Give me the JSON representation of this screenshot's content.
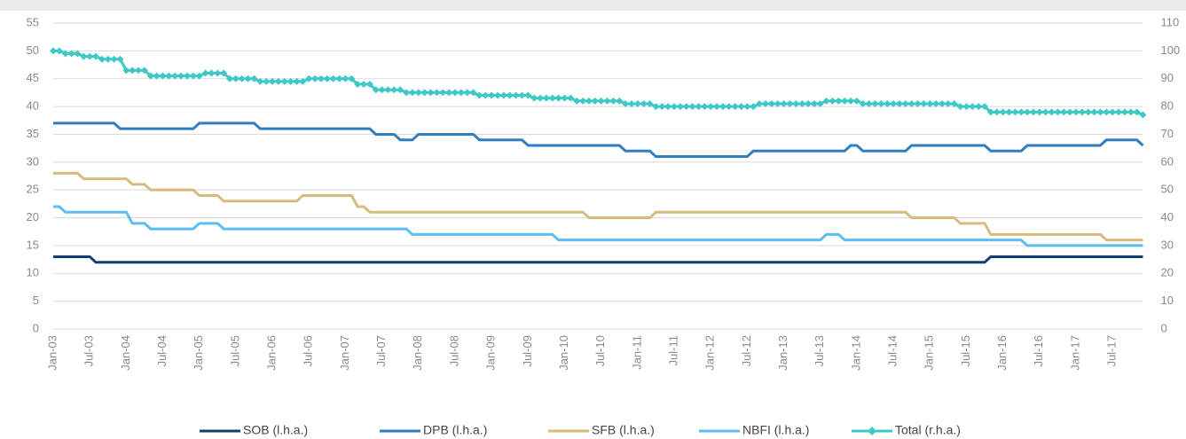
{
  "chart_data": {
    "type": "line",
    "categories": [
      "Jan-03",
      null,
      null,
      null,
      null,
      null,
      "Jul-03",
      null,
      null,
      null,
      null,
      null,
      "Jan-04",
      null,
      null,
      null,
      null,
      null,
      "Jul-04",
      null,
      null,
      null,
      null,
      null,
      "Jan-05",
      null,
      null,
      null,
      null,
      null,
      "Jul-05",
      null,
      null,
      null,
      null,
      null,
      "Jan-06",
      null,
      null,
      null,
      null,
      null,
      "Jul-06",
      null,
      null,
      null,
      null,
      null,
      "Jan-07",
      null,
      null,
      null,
      null,
      null,
      "Jul-07",
      null,
      null,
      null,
      null,
      null,
      "Jan-08",
      null,
      null,
      null,
      null,
      null,
      "Jul-08",
      null,
      null,
      null,
      null,
      null,
      "Jan-09",
      null,
      null,
      null,
      null,
      null,
      "Jul-09",
      null,
      null,
      null,
      null,
      null,
      "Jan-10",
      null,
      null,
      null,
      null,
      null,
      "Jul-10",
      null,
      null,
      null,
      null,
      null,
      "Jan-11",
      null,
      null,
      null,
      null,
      null,
      "Jul-11",
      null,
      null,
      null,
      null,
      null,
      "Jan-12",
      null,
      null,
      null,
      null,
      null,
      "Jul-12",
      null,
      null,
      null,
      null,
      null,
      "Jan-13",
      null,
      null,
      null,
      null,
      null,
      "Jul-13",
      null,
      null,
      null,
      null,
      null,
      "Jan-14",
      null,
      null,
      null,
      null,
      null,
      "Jul-14",
      null,
      null,
      null,
      null,
      null,
      "Jan-15",
      null,
      null,
      null,
      null,
      null,
      "Jul-15",
      null,
      null,
      null,
      null,
      null,
      "Jan-16",
      null,
      null,
      null,
      null,
      null,
      "Jul-16",
      null,
      null,
      null,
      null,
      null,
      "Jan-17",
      null,
      null,
      null,
      null,
      null,
      "Jul-17",
      null,
      null,
      null,
      null,
      null
    ],
    "series": [
      {
        "name": "SOB (l.h.a.)",
        "color": "#123f6e",
        "values": [
          13,
          13,
          13,
          13,
          13,
          13,
          13,
          12,
          12,
          12,
          12,
          12,
          12,
          12,
          12,
          12,
          12,
          12,
          12,
          12,
          12,
          12,
          12,
          12,
          12,
          12,
          12,
          12,
          12,
          12,
          12,
          12,
          12,
          12,
          12,
          12,
          12,
          12,
          12,
          12,
          12,
          12,
          12,
          12,
          12,
          12,
          12,
          12,
          12,
          12,
          12,
          12,
          12,
          12,
          12,
          12,
          12,
          12,
          12,
          12,
          12,
          12,
          12,
          12,
          12,
          12,
          12,
          12,
          12,
          12,
          12,
          12,
          12,
          12,
          12,
          12,
          12,
          12,
          12,
          12,
          12,
          12,
          12,
          12,
          12,
          12,
          12,
          12,
          12,
          12,
          12,
          12,
          12,
          12,
          12,
          12,
          12,
          12,
          12,
          12,
          12,
          12,
          12,
          12,
          12,
          12,
          12,
          12,
          12,
          12,
          12,
          12,
          12,
          12,
          12,
          12,
          12,
          12,
          12,
          12,
          12,
          12,
          12,
          12,
          12,
          12,
          12,
          12,
          12,
          12,
          12,
          12,
          12,
          12,
          12,
          12,
          12,
          12,
          12,
          12,
          12,
          12,
          12,
          12,
          12,
          12,
          12,
          12,
          12,
          12,
          12,
          12,
          12,
          12,
          13,
          13,
          13,
          13,
          13,
          13,
          13,
          13,
          13,
          13,
          13,
          13,
          13,
          13,
          13,
          13,
          13,
          13,
          13,
          13,
          13,
          13,
          13,
          13,
          13,
          13
        ]
      },
      {
        "name": "DPB (l.h.a.)",
        "color": "#2f7ec1",
        "values": [
          37,
          37,
          37,
          37,
          37,
          37,
          37,
          37,
          37,
          37,
          37,
          36,
          36,
          36,
          36,
          36,
          36,
          36,
          36,
          36,
          36,
          36,
          36,
          36,
          37,
          37,
          37,
          37,
          37,
          37,
          37,
          37,
          37,
          37,
          36,
          36,
          36,
          36,
          36,
          36,
          36,
          36,
          36,
          36,
          36,
          36,
          36,
          36,
          36,
          36,
          36,
          36,
          36,
          35,
          35,
          35,
          35,
          34,
          34,
          34,
          35,
          35,
          35,
          35,
          35,
          35,
          35,
          35,
          35,
          35,
          34,
          34,
          34,
          34,
          34,
          34,
          34,
          34,
          33,
          33,
          33,
          33,
          33,
          33,
          33,
          33,
          33,
          33,
          33,
          33,
          33,
          33,
          33,
          33,
          32,
          32,
          32,
          32,
          32,
          31,
          31,
          31,
          31,
          31,
          31,
          31,
          31,
          31,
          31,
          31,
          31,
          31,
          31,
          31,
          31,
          32,
          32,
          32,
          32,
          32,
          32,
          32,
          32,
          32,
          32,
          32,
          32,
          32,
          32,
          32,
          32,
          33,
          33,
          32,
          32,
          32,
          32,
          32,
          32,
          32,
          32,
          33,
          33,
          33,
          33,
          33,
          33,
          33,
          33,
          33,
          33,
          33,
          33,
          33,
          32,
          32,
          32,
          32,
          32,
          32,
          33,
          33,
          33,
          33,
          33,
          33,
          33,
          33,
          33,
          33,
          33,
          33,
          33,
          34,
          34,
          34,
          34,
          34,
          34,
          33
        ]
      },
      {
        "name": "SFB (l.h.a.)",
        "color": "#d6bb7c",
        "values": [
          28,
          28,
          28,
          28,
          28,
          27,
          27,
          27,
          27,
          27,
          27,
          27,
          27,
          26,
          26,
          26,
          25,
          25,
          25,
          25,
          25,
          25,
          25,
          25,
          24,
          24,
          24,
          24,
          23,
          23,
          23,
          23,
          23,
          23,
          23,
          23,
          23,
          23,
          23,
          23,
          23,
          24,
          24,
          24,
          24,
          24,
          24,
          24,
          24,
          24,
          22,
          22,
          21,
          21,
          21,
          21,
          21,
          21,
          21,
          21,
          21,
          21,
          21,
          21,
          21,
          21,
          21,
          21,
          21,
          21,
          21,
          21,
          21,
          21,
          21,
          21,
          21,
          21,
          21,
          21,
          21,
          21,
          21,
          21,
          21,
          21,
          21,
          21,
          20,
          20,
          20,
          20,
          20,
          20,
          20,
          20,
          20,
          20,
          20,
          21,
          21,
          21,
          21,
          21,
          21,
          21,
          21,
          21,
          21,
          21,
          21,
          21,
          21,
          21,
          21,
          21,
          21,
          21,
          21,
          21,
          21,
          21,
          21,
          21,
          21,
          21,
          21,
          21,
          21,
          21,
          21,
          21,
          21,
          21,
          21,
          21,
          21,
          21,
          21,
          21,
          21,
          20,
          20,
          20,
          20,
          20,
          20,
          20,
          20,
          19,
          19,
          19,
          19,
          19,
          17,
          17,
          17,
          17,
          17,
          17,
          17,
          17,
          17,
          17,
          17,
          17,
          17,
          17,
          17,
          17,
          17,
          17,
          17,
          16,
          16,
          16,
          16,
          16,
          16,
          16
        ]
      },
      {
        "name": "NBFI (l.h.a.)",
        "color": "#5bbdf2",
        "values": [
          22,
          22,
          21,
          21,
          21,
          21,
          21,
          21,
          21,
          21,
          21,
          21,
          21,
          19,
          19,
          19,
          18,
          18,
          18,
          18,
          18,
          18,
          18,
          18,
          19,
          19,
          19,
          19,
          18,
          18,
          18,
          18,
          18,
          18,
          18,
          18,
          18,
          18,
          18,
          18,
          18,
          18,
          18,
          18,
          18,
          18,
          18,
          18,
          18,
          18,
          18,
          18,
          18,
          18,
          18,
          18,
          18,
          18,
          18,
          17,
          17,
          17,
          17,
          17,
          17,
          17,
          17,
          17,
          17,
          17,
          17,
          17,
          17,
          17,
          17,
          17,
          17,
          17,
          17,
          17,
          17,
          17,
          17,
          16,
          16,
          16,
          16,
          16,
          16,
          16,
          16,
          16,
          16,
          16,
          16,
          16,
          16,
          16,
          16,
          16,
          16,
          16,
          16,
          16,
          16,
          16,
          16,
          16,
          16,
          16,
          16,
          16,
          16,
          16,
          16,
          16,
          16,
          16,
          16,
          16,
          16,
          16,
          16,
          16,
          16,
          16,
          16,
          17,
          17,
          17,
          16,
          16,
          16,
          16,
          16,
          16,
          16,
          16,
          16,
          16,
          16,
          16,
          16,
          16,
          16,
          16,
          16,
          16,
          16,
          16,
          16,
          16,
          16,
          16,
          16,
          16,
          16,
          16,
          16,
          16,
          15,
          15,
          15,
          15,
          15,
          15,
          15,
          15,
          15,
          15,
          15,
          15,
          15,
          15,
          15,
          15,
          15,
          15,
          15,
          15
        ]
      },
      {
        "name": "Total (r.h.a.)",
        "color": "#3ec8c6",
        "axis": "y2",
        "marker": "diamond",
        "values": [
          100,
          100,
          99,
          99,
          99,
          98,
          98,
          98,
          97,
          97,
          97,
          97,
          93,
          93,
          93,
          93,
          91,
          91,
          91,
          91,
          91,
          91,
          91,
          91,
          91,
          92,
          92,
          92,
          92,
          90,
          90,
          90,
          90,
          90,
          89,
          89,
          89,
          89,
          89,
          89,
          89,
          89,
          90,
          90,
          90,
          90,
          90,
          90,
          90,
          90,
          88,
          88,
          88,
          86,
          86,
          86,
          86,
          86,
          85,
          85,
          85,
          85,
          85,
          85,
          85,
          85,
          85,
          85,
          85,
          85,
          84,
          84,
          84,
          84,
          84,
          84,
          84,
          84,
          84,
          83,
          83,
          83,
          83,
          83,
          83,
          83,
          82,
          82,
          82,
          82,
          82,
          82,
          82,
          82,
          81,
          81,
          81,
          81,
          81,
          80,
          80,
          80,
          80,
          80,
          80,
          80,
          80,
          80,
          80,
          80,
          80,
          80,
          80,
          80,
          80,
          80,
          81,
          81,
          81,
          81,
          81,
          81,
          81,
          81,
          81,
          81,
          81,
          82,
          82,
          82,
          82,
          82,
          82,
          81,
          81,
          81,
          81,
          81,
          81,
          81,
          81,
          81,
          81,
          81,
          81,
          81,
          81,
          81,
          81,
          80,
          80,
          80,
          80,
          80,
          78,
          78,
          78,
          78,
          78,
          78,
          78,
          78,
          78,
          78,
          78,
          78,
          78,
          78,
          78,
          78,
          78,
          78,
          78,
          78,
          78,
          78,
          78,
          78,
          78,
          77
        ]
      }
    ],
    "ylim": [
      0,
      55
    ],
    "yticks": [
      0,
      5,
      10,
      15,
      20,
      25,
      30,
      35,
      40,
      45,
      50,
      55
    ],
    "y2lim": [
      0,
      110
    ],
    "y2ticks": [
      0,
      10,
      20,
      30,
      40,
      50,
      60,
      70,
      80,
      90,
      100,
      110
    ],
    "grid": true,
    "legend": "bottom"
  }
}
